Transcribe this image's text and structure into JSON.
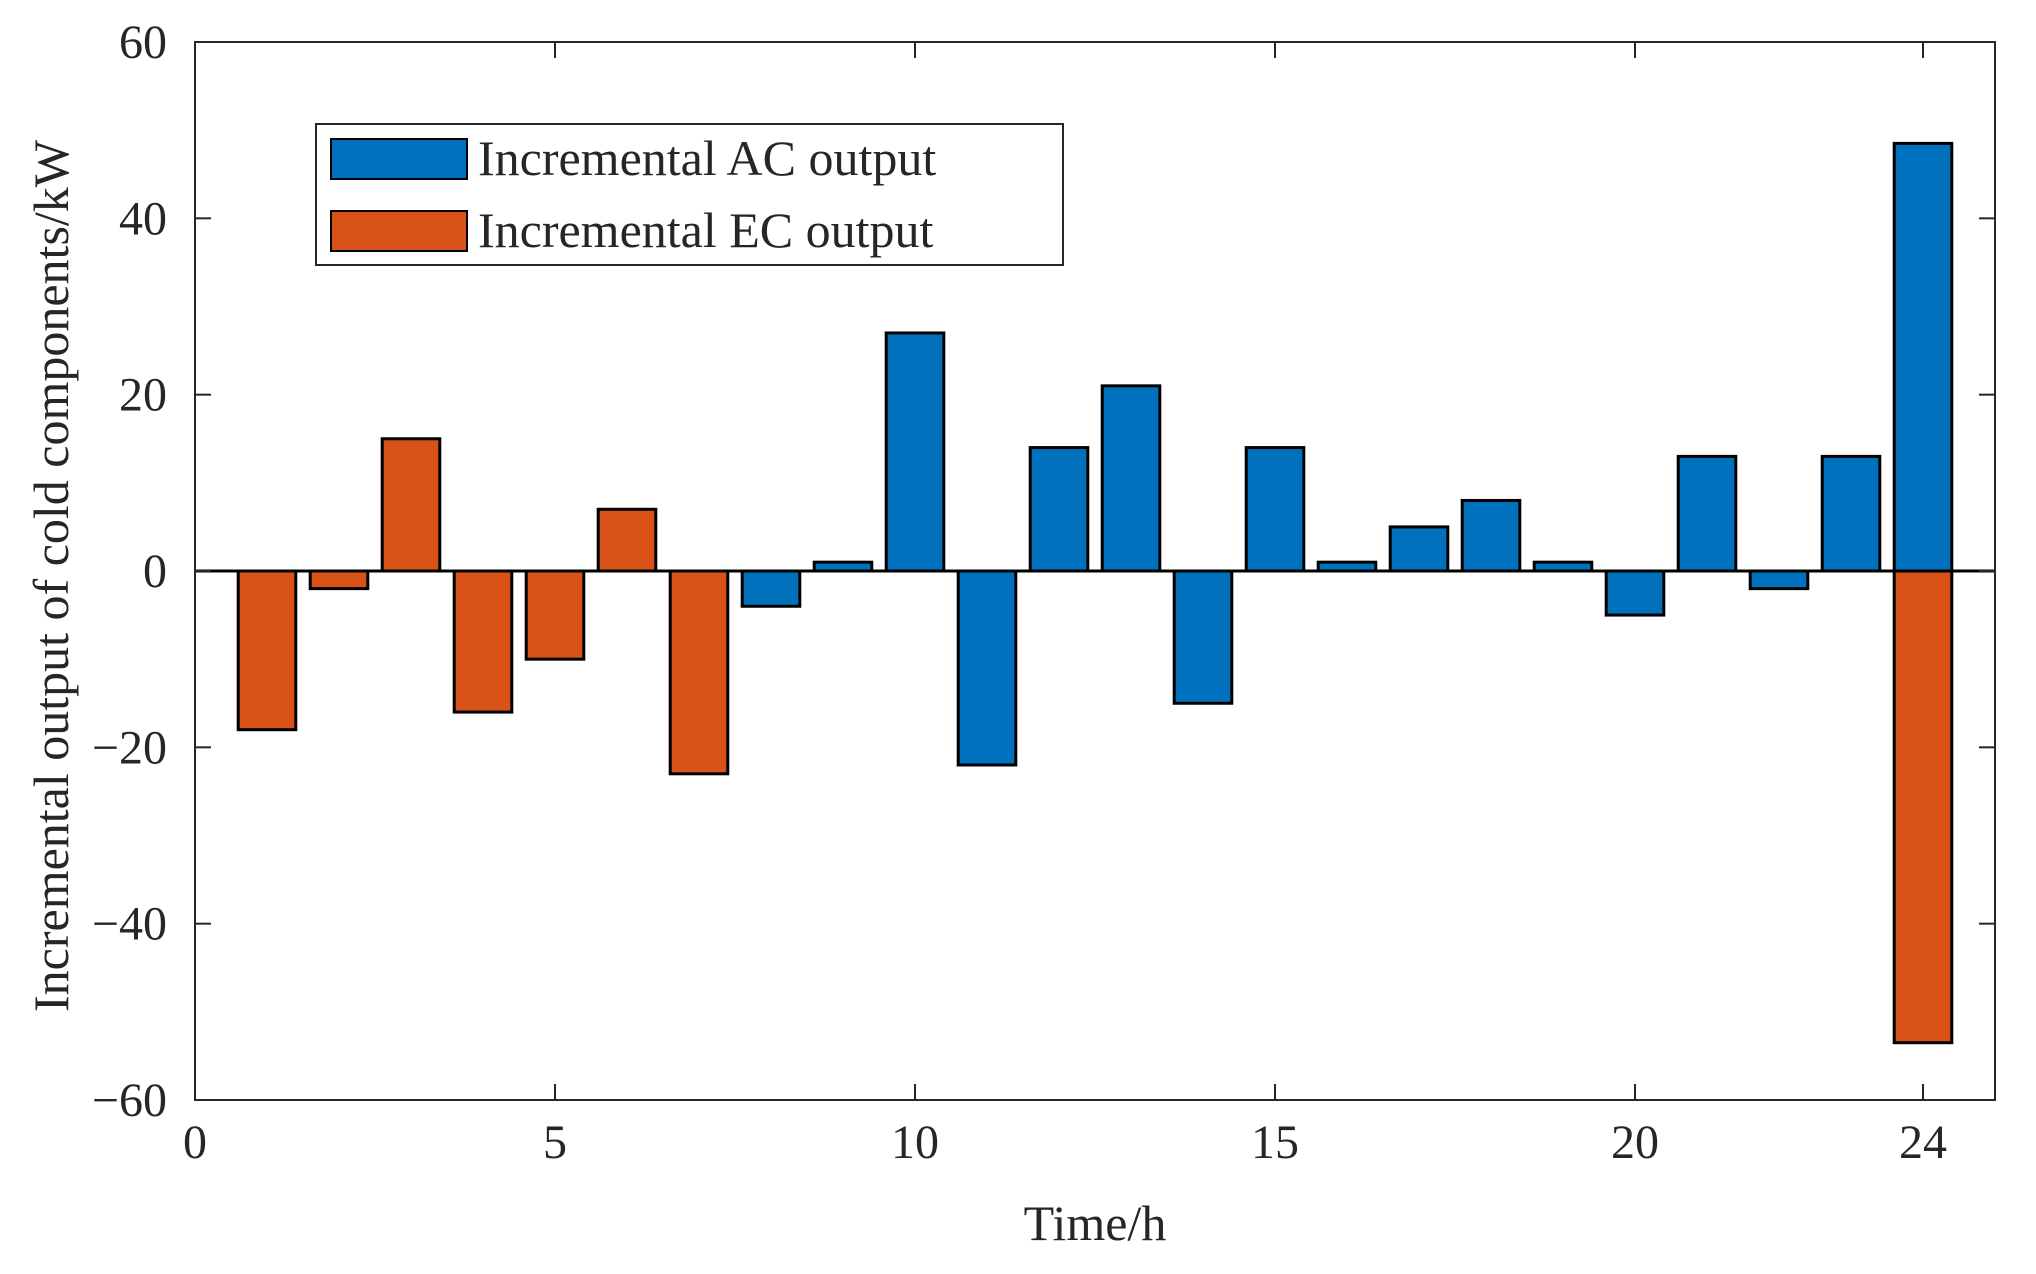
{
  "chart_data": {
    "type": "bar",
    "title": "",
    "xlabel": "Time/h",
    "ylabel": "Incremental output of cold components/kW",
    "xlim": [
      0,
      25
    ],
    "ylim": [
      -60,
      60
    ],
    "x_ticks": [
      0,
      5,
      10,
      15,
      20,
      24
    ],
    "y_ticks": [
      -60,
      -40,
      -20,
      0,
      20,
      40,
      60
    ],
    "x_tick_labels": [
      "0",
      "5",
      "10",
      "15",
      "20",
      "24"
    ],
    "y_tick_labels": [
      "−60",
      "−40",
      "−20",
      "0",
      "20",
      "40",
      "60"
    ],
    "legend_position": "top-left",
    "series": [
      {
        "name": "Incremental AC output",
        "color": "#0072BD",
        "points": [
          {
            "x": 8,
            "y": -4
          },
          {
            "x": 9,
            "y": 1
          },
          {
            "x": 10,
            "y": 27
          },
          {
            "x": 11,
            "y": -22
          },
          {
            "x": 12,
            "y": 14
          },
          {
            "x": 13,
            "y": 21
          },
          {
            "x": 14,
            "y": -15
          },
          {
            "x": 15,
            "y": 14
          },
          {
            "x": 16,
            "y": 1
          },
          {
            "x": 17,
            "y": 5
          },
          {
            "x": 18,
            "y": 8
          },
          {
            "x": 19,
            "y": 1
          },
          {
            "x": 20,
            "y": -5
          },
          {
            "x": 21,
            "y": 13
          },
          {
            "x": 22,
            "y": -2
          },
          {
            "x": 23,
            "y": 13
          },
          {
            "x": 24,
            "y": 48.5
          }
        ]
      },
      {
        "name": "Incremental EC output",
        "color": "#D95319",
        "points": [
          {
            "x": 1,
            "y": -18
          },
          {
            "x": 2,
            "y": -2
          },
          {
            "x": 3,
            "y": 15
          },
          {
            "x": 4,
            "y": -16
          },
          {
            "x": 5,
            "y": -10
          },
          {
            "x": 6,
            "y": 7
          },
          {
            "x": 7,
            "y": -23
          },
          {
            "x": 24,
            "y": -53.5
          }
        ]
      }
    ]
  }
}
